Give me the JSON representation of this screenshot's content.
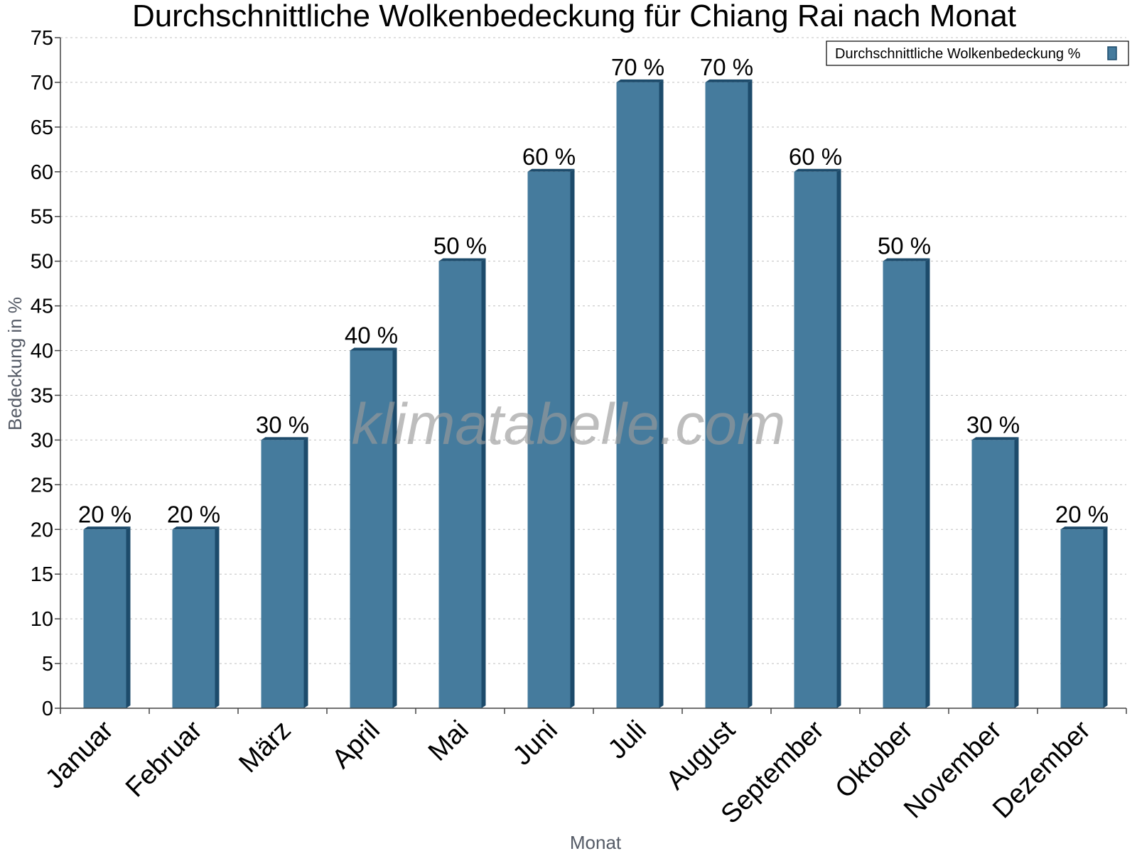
{
  "chart_data": {
    "type": "bar",
    "title": "Durchschnittliche Wolkenbedeckung für Chiang Rai nach Monat",
    "xlabel": "Monat",
    "ylabel": "Bedeckung in %",
    "ylim": [
      0,
      75
    ],
    "ytick_step": 5,
    "grid": true,
    "legend_position": "top-right",
    "categories": [
      "Januar",
      "Februar",
      "März",
      "April",
      "Mai",
      "Juni",
      "Juli",
      "August",
      "September",
      "Oktober",
      "November",
      "Dezember"
    ],
    "series": [
      {
        "name": "Durchschnittliche Wolkenbedeckung %",
        "values": [
          20,
          20,
          30,
          40,
          50,
          60,
          70,
          70,
          60,
          50,
          30,
          20
        ]
      }
    ],
    "data_labels": [
      "20 %",
      "20 %",
      "30 %",
      "40 %",
      "50 %",
      "60 %",
      "70 %",
      "70 %",
      "60 %",
      "50 %",
      "30 %",
      "20 %"
    ],
    "watermark": "klimatabelle.com"
  },
  "colors": {
    "bar": "#457b9d",
    "bar_side": "#1d4b6b",
    "grid": "#c0c0c0",
    "axis": "#444444"
  }
}
